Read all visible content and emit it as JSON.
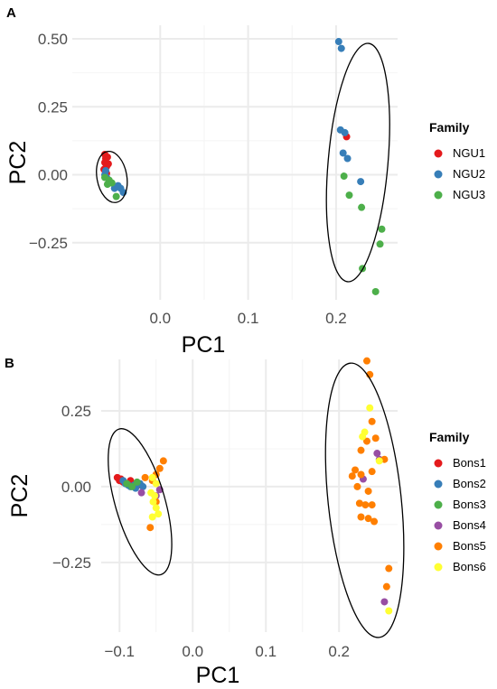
{
  "chart_data": [
    {
      "type": "scatter",
      "panel_label": "A",
      "xlabel": "PC1",
      "ylabel": "PC2",
      "xlim": [
        -0.1,
        0.27
      ],
      "ylim": [
        -0.46,
        0.55
      ],
      "xticks": [
        0.0,
        0.1,
        0.2
      ],
      "xtick_labels": [
        "0.0",
        "0.1",
        "0.2"
      ],
      "yticks": [
        -0.25,
        0.0,
        0.25,
        0.5
      ],
      "ytick_labels": [
        "−0.25",
        "0.00",
        "0.25",
        "0.50"
      ],
      "grid": true,
      "legend": {
        "title": "Family",
        "placement": "right"
      },
      "series": [
        {
          "name": "NGU1",
          "color": "#e41a1c",
          "points": [
            [
              -0.063,
              0.075
            ],
            [
              -0.062,
              0.06
            ],
            [
              -0.063,
              0.045
            ],
            [
              -0.061,
              0.03
            ],
            [
              -0.064,
              0.02
            ],
            [
              -0.06,
              0.065
            ],
            [
              -0.062,
              0.01
            ],
            [
              -0.059,
              0.04
            ],
            [
              -0.061,
              0.005
            ],
            [
              0.212,
              0.14
            ]
          ]
        },
        {
          "name": "NGU2",
          "color": "#377eb8",
          "points": [
            [
              -0.063,
              0.0
            ],
            [
              -0.061,
              -0.01
            ],
            [
              -0.058,
              -0.03
            ],
            [
              -0.052,
              -0.05
            ],
            [
              -0.045,
              -0.05
            ],
            [
              -0.042,
              -0.065
            ],
            [
              -0.062,
              0.015
            ],
            [
              -0.048,
              -0.04
            ],
            [
              0.203,
              0.49
            ],
            [
              0.206,
              0.465
            ],
            [
              0.205,
              0.165
            ],
            [
              0.21,
              0.155
            ],
            [
              0.208,
              0.08
            ],
            [
              0.213,
              0.06
            ],
            [
              0.228,
              -0.025
            ]
          ]
        },
        {
          "name": "NGU3",
          "color": "#4daf4a",
          "points": [
            [
              -0.063,
              -0.01
            ],
            [
              -0.058,
              -0.02
            ],
            [
              -0.055,
              -0.03
            ],
            [
              -0.06,
              -0.035
            ],
            [
              -0.05,
              -0.08
            ],
            [
              0.209,
              -0.005
            ],
            [
              0.215,
              -0.075
            ],
            [
              0.229,
              -0.12
            ],
            [
              0.252,
              -0.2
            ],
            [
              0.25,
              -0.255
            ],
            [
              0.23,
              -0.345
            ],
            [
              0.245,
              -0.43
            ]
          ]
        }
      ],
      "ellipses": [
        {
          "cx": -0.055,
          "cy": -0.008,
          "rx": 0.017,
          "ry": 0.095,
          "angle_deg": -10
        },
        {
          "cx": 0.225,
          "cy": 0.045,
          "rx": 0.034,
          "ry": 0.44,
          "angle_deg": 5
        }
      ]
    },
    {
      "type": "scatter",
      "panel_label": "B",
      "xlabel": "PC1",
      "ylabel": "PC2",
      "xlim": [
        -0.125,
        0.28
      ],
      "ylim": [
        -0.48,
        0.42
      ],
      "xticks": [
        -0.1,
        0.0,
        0.1,
        0.2
      ],
      "xtick_labels": [
        "−0.1",
        "0.0",
        "0.1",
        "0.2"
      ],
      "yticks": [
        -0.25,
        0.0,
        0.25
      ],
      "ytick_labels": [
        "−0.25",
        "0.00",
        "0.25"
      ],
      "grid": true,
      "legend": {
        "title": "Family",
        "placement": "right"
      },
      "series": [
        {
          "name": "Bons1",
          "color": "#e41a1c",
          "points": [
            [
              -0.103,
              0.03
            ],
            [
              -0.1,
              0.02
            ],
            [
              -0.098,
              0.025
            ],
            [
              -0.095,
              0.015
            ],
            [
              -0.09,
              0.01
            ],
            [
              -0.085,
              0.02
            ],
            [
              -0.075,
              0.005
            ]
          ]
        },
        {
          "name": "Bons2",
          "color": "#377eb8",
          "points": [
            [
              -0.095,
              0.02
            ],
            [
              -0.092,
              0.01
            ],
            [
              -0.088,
              0.005
            ],
            [
              -0.085,
              0.0
            ],
            [
              -0.08,
              0.005
            ],
            [
              -0.078,
              -0.005
            ],
            [
              -0.072,
              0.01
            ],
            [
              -0.068,
              0.0
            ]
          ]
        },
        {
          "name": "Bons3",
          "color": "#4daf4a",
          "points": [
            [
              -0.09,
              0.01
            ],
            [
              -0.083,
              0.0
            ],
            [
              -0.076,
              0.015
            ]
          ]
        },
        {
          "name": "Bons4",
          "color": "#984ea3",
          "points": [
            [
              -0.07,
              -0.02
            ],
            [
              -0.05,
              -0.03
            ],
            [
              -0.045,
              -0.01
            ],
            [
              0.233,
              0.025
            ],
            [
              0.252,
              0.11
            ],
            [
              0.262,
              -0.38
            ],
            [
              0.255,
              0.09
            ]
          ]
        },
        {
          "name": "Bons5",
          "color": "#ff7f00",
          "points": [
            [
              -0.04,
              0.085
            ],
            [
              -0.045,
              0.06
            ],
            [
              -0.05,
              0.04
            ],
            [
              -0.055,
              0.02
            ],
            [
              -0.058,
              -0.135
            ],
            [
              -0.05,
              -0.05
            ],
            [
              -0.065,
              0.03
            ],
            [
              0.238,
              0.415
            ],
            [
              0.242,
              0.37
            ],
            [
              0.245,
              0.215
            ],
            [
              0.25,
              0.16
            ],
            [
              0.238,
              0.15
            ],
            [
              0.23,
              0.12
            ],
            [
              0.222,
              0.055
            ],
            [
              0.218,
              0.035
            ],
            [
              0.23,
              0.04
            ],
            [
              0.245,
              0.05
            ],
            [
              0.225,
              0.0
            ],
            [
              0.24,
              -0.015
            ],
            [
              0.228,
              -0.055
            ],
            [
              0.236,
              -0.06
            ],
            [
              0.245,
              -0.06
            ],
            [
              0.23,
              -0.1
            ],
            [
              0.24,
              -0.105
            ],
            [
              0.248,
              -0.115
            ],
            [
              0.268,
              -0.27
            ],
            [
              0.265,
              -0.33
            ],
            [
              0.262,
              0.09
            ]
          ]
        },
        {
          "name": "Bons6",
          "color": "#ffff33",
          "points": [
            [
              -0.055,
              0.03
            ],
            [
              -0.05,
              0.01
            ],
            [
              -0.057,
              -0.02
            ],
            [
              -0.054,
              -0.05
            ],
            [
              -0.05,
              -0.07
            ],
            [
              -0.047,
              -0.09
            ],
            [
              -0.055,
              -0.1
            ],
            [
              -0.052,
              -0.03
            ],
            [
              0.242,
              0.26
            ],
            [
              0.235,
              0.18
            ],
            [
              0.232,
              0.165
            ],
            [
              0.255,
              0.085
            ],
            [
              0.268,
              -0.41
            ]
          ]
        }
      ],
      "ellipses": [
        {
          "cx": -0.072,
          "cy": -0.05,
          "rx": 0.034,
          "ry": 0.25,
          "angle_deg": -16
        },
        {
          "cx": 0.235,
          "cy": -0.045,
          "rx": 0.05,
          "ry": 0.455,
          "angle_deg": -6
        }
      ]
    }
  ]
}
